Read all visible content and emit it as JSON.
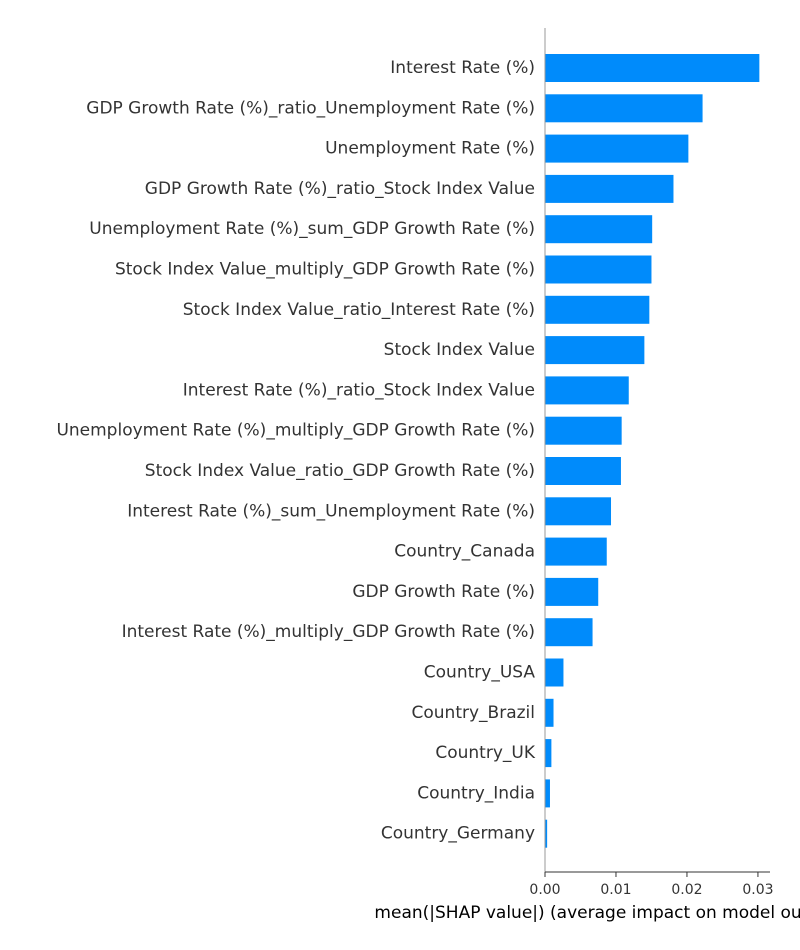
{
  "chart_data": {
    "type": "bar",
    "orientation": "horizontal",
    "categories": [
      "Interest Rate (%)",
      "GDP Growth Rate (%)_ratio_Unemployment Rate (%)",
      "Unemployment Rate (%)",
      "GDP Growth Rate (%)_ratio_Stock Index Value",
      "Unemployment Rate (%)_sum_GDP Growth Rate (%)",
      "Stock Index Value_multiply_GDP Growth Rate (%)",
      "Stock Index Value_ratio_Interest Rate (%)",
      "Stock Index Value",
      "Interest Rate (%)_ratio_Stock Index Value",
      "Unemployment Rate (%)_multiply_GDP Growth Rate (%)",
      "Stock Index Value_ratio_GDP Growth Rate (%)",
      "Interest Rate (%)_sum_Unemployment Rate (%)",
      "Country_Canada",
      "GDP Growth Rate (%)",
      "Interest Rate (%)_multiply_GDP Growth Rate (%)",
      "Country_USA",
      "Country_Brazil",
      "Country_UK",
      "Country_India",
      "Country_Germany"
    ],
    "values": [
      0.0302,
      0.0222,
      0.0202,
      0.0181,
      0.0151,
      0.015,
      0.0147,
      0.014,
      0.0118,
      0.0108,
      0.0107,
      0.0093,
      0.0087,
      0.0075,
      0.0067,
      0.0026,
      0.0012,
      0.0009,
      0.0007,
      0.0003
    ],
    "xlabel": "mean(|SHAP value|) (average impact on model output magnitude)",
    "ylabel": "",
    "title": "",
    "xlim": [
      0.0,
      0.0317
    ],
    "xticks": [
      0.0,
      0.01,
      0.02,
      0.03
    ],
    "xtick_labels": [
      "0.00",
      "0.01",
      "0.02",
      "0.03"
    ],
    "grid": false,
    "bar_color": "#008bfb"
  }
}
